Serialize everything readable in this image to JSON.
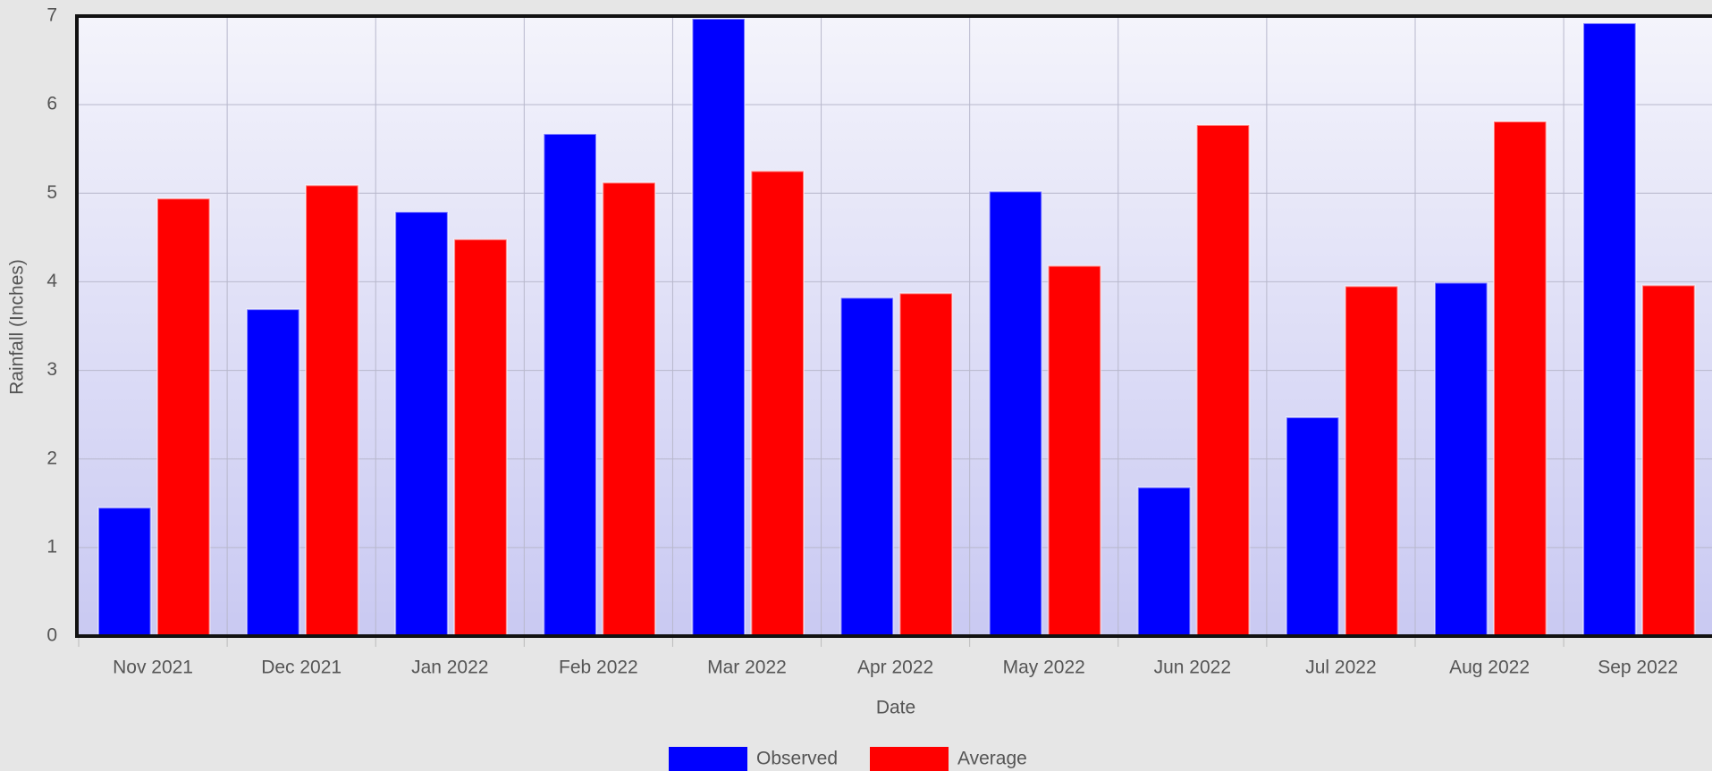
{
  "chart_data": {
    "type": "bar",
    "x_label": "Date",
    "y_label": "Rainfall (Inches)",
    "categories": [
      "Nov 2021",
      "Dec 2021",
      "Jan 2022",
      "Feb 2022",
      "Mar 2022",
      "Apr 2022",
      "May 2022",
      "Jun 2022",
      "Jul 2022",
      "Aug 2022",
      "Sep 2022"
    ],
    "series": [
      {
        "name": "Observed",
        "color": "#0000ff",
        "values": [
          1.45,
          3.69,
          4.79,
          5.67,
          6.97,
          3.82,
          5.02,
          1.68,
          2.47,
          3.99,
          6.92
        ]
      },
      {
        "name": "Average",
        "color": "#ff0000",
        "values": [
          4.94,
          5.09,
          4.48,
          5.12,
          5.25,
          3.87,
          4.18,
          5.77,
          3.95,
          5.81,
          3.96
        ]
      }
    ],
    "ylim": [
      0,
      7
    ],
    "yticks": [
      0,
      1,
      2,
      3,
      4,
      5,
      6,
      7
    ],
    "grid": true,
    "legend": "bottom"
  }
}
